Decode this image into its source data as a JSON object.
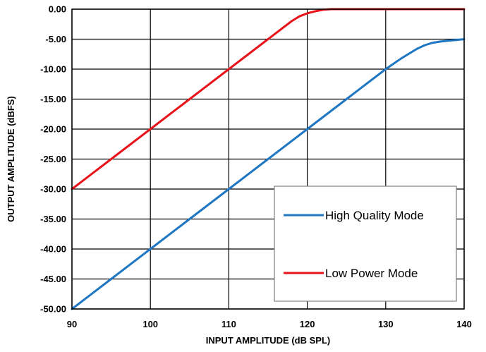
{
  "chart_data": {
    "type": "line",
    "xlabel": "INPUT AMPLITUDE (dB SPL)",
    "ylabel": "OUTPUT AMPLITUDE (dBFS)",
    "xlim": [
      90,
      140
    ],
    "ylim": [
      -50,
      0
    ],
    "x_ticks": [
      "90",
      "100",
      "110",
      "120",
      "130",
      "140"
    ],
    "y_ticks": [
      "0.00",
      "-5.00",
      "-10.00",
      "-15.00",
      "-20.00",
      "-25.00",
      "-30.00",
      "-35.00",
      "-40.00",
      "-45.00",
      "-50.00"
    ],
    "grid": true,
    "legend_position": "bottom-right",
    "series": [
      {
        "name": "High Quality Mode",
        "color": "#1f77c4",
        "x": [
          90,
          95,
          100,
          105,
          110,
          115,
          120,
          125,
          130,
          132,
          134,
          135,
          136,
          137,
          138,
          139,
          140
        ],
        "y": [
          -50,
          -45,
          -40,
          -35,
          -30,
          -25,
          -20,
          -15,
          -10,
          -8.2,
          -6.6,
          -6.0,
          -5.6,
          -5.4,
          -5.25,
          -5.15,
          -5.0
        ]
      },
      {
        "name": "Low Power Mode",
        "color": "#e8141b",
        "x": [
          90,
          95,
          100,
          105,
          110,
          115,
          118,
          119,
          120,
          121,
          122,
          123,
          124,
          125,
          130,
          135,
          140
        ],
        "y": [
          -30,
          -25,
          -20,
          -15,
          -10,
          -5,
          -2,
          -1.2,
          -0.7,
          -0.35,
          -0.1,
          0,
          0,
          0,
          0,
          0,
          0
        ]
      }
    ]
  }
}
